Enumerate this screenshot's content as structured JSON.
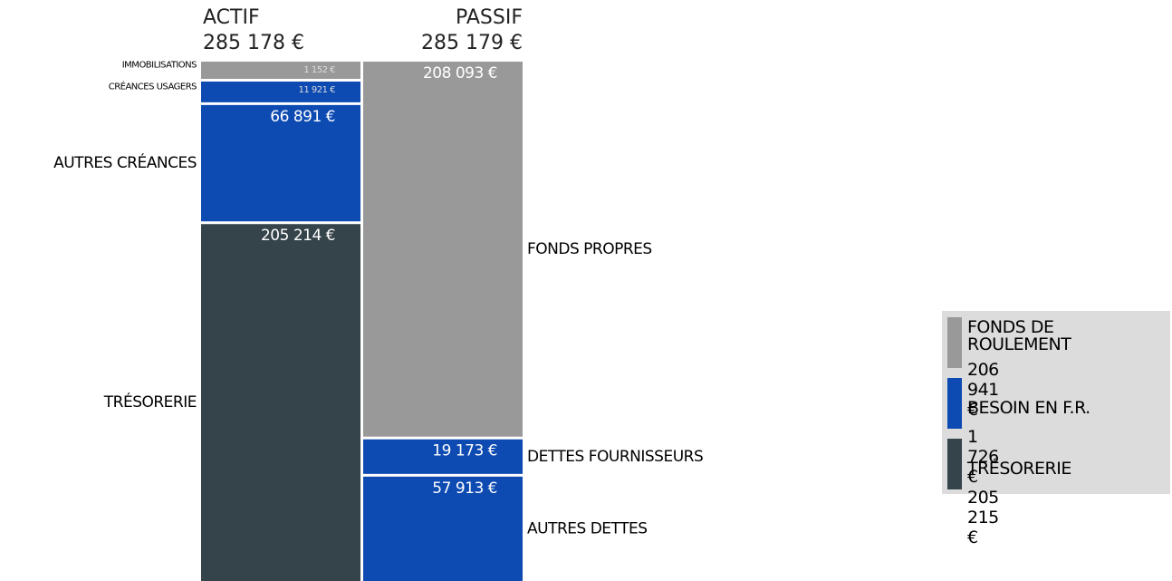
{
  "chart_data": {
    "type": "balance",
    "columns": [
      {
        "name": "ACTIF",
        "total": 285178,
        "total_label": "285 178 €",
        "segments": [
          {
            "name": "IMMOBILISATIONS",
            "value": 1152,
            "value_label": "1 152 €",
            "color": "#999999"
          },
          {
            "name": "CRÉANCES USAGERS",
            "value": 11921,
            "value_label": "11 921 €",
            "color": "#0d4ab2"
          },
          {
            "name": "AUTRES CRÉANCES",
            "value": 66891,
            "value_label": "66 891 €",
            "color": "#0d4ab2"
          },
          {
            "name": "TRÉSORERIE",
            "value": 205214,
            "value_label": "205 214 €",
            "color": "#35434a"
          }
        ]
      },
      {
        "name": "PASSIF",
        "total": 285179,
        "total_label": "285 179 €",
        "segments": [
          {
            "name": "FONDS PROPRES",
            "value": 208093,
            "value_label": "208 093 €",
            "color": "#999999"
          },
          {
            "name": "DETTES FOURNISSEURS",
            "value": 19173,
            "value_label": "19 173 €",
            "color": "#0d4ab2"
          },
          {
            "name": "AUTRES DETTES",
            "value": 57913,
            "value_label": "57 913 €",
            "color": "#0d4ab2"
          }
        ]
      }
    ],
    "legend": [
      {
        "name": "FONDS DE ROULEMENT",
        "value": 206941,
        "value_label": "206 941 €",
        "color": "#999999"
      },
      {
        "name": "BESOIN EN F.R.",
        "value": 1726,
        "value_label": "1 726 €",
        "color": "#0d4ab2"
      },
      {
        "name": "TRÉSORERIE",
        "value": 205215,
        "value_label": "205 215 €",
        "color": "#35434a"
      }
    ]
  }
}
